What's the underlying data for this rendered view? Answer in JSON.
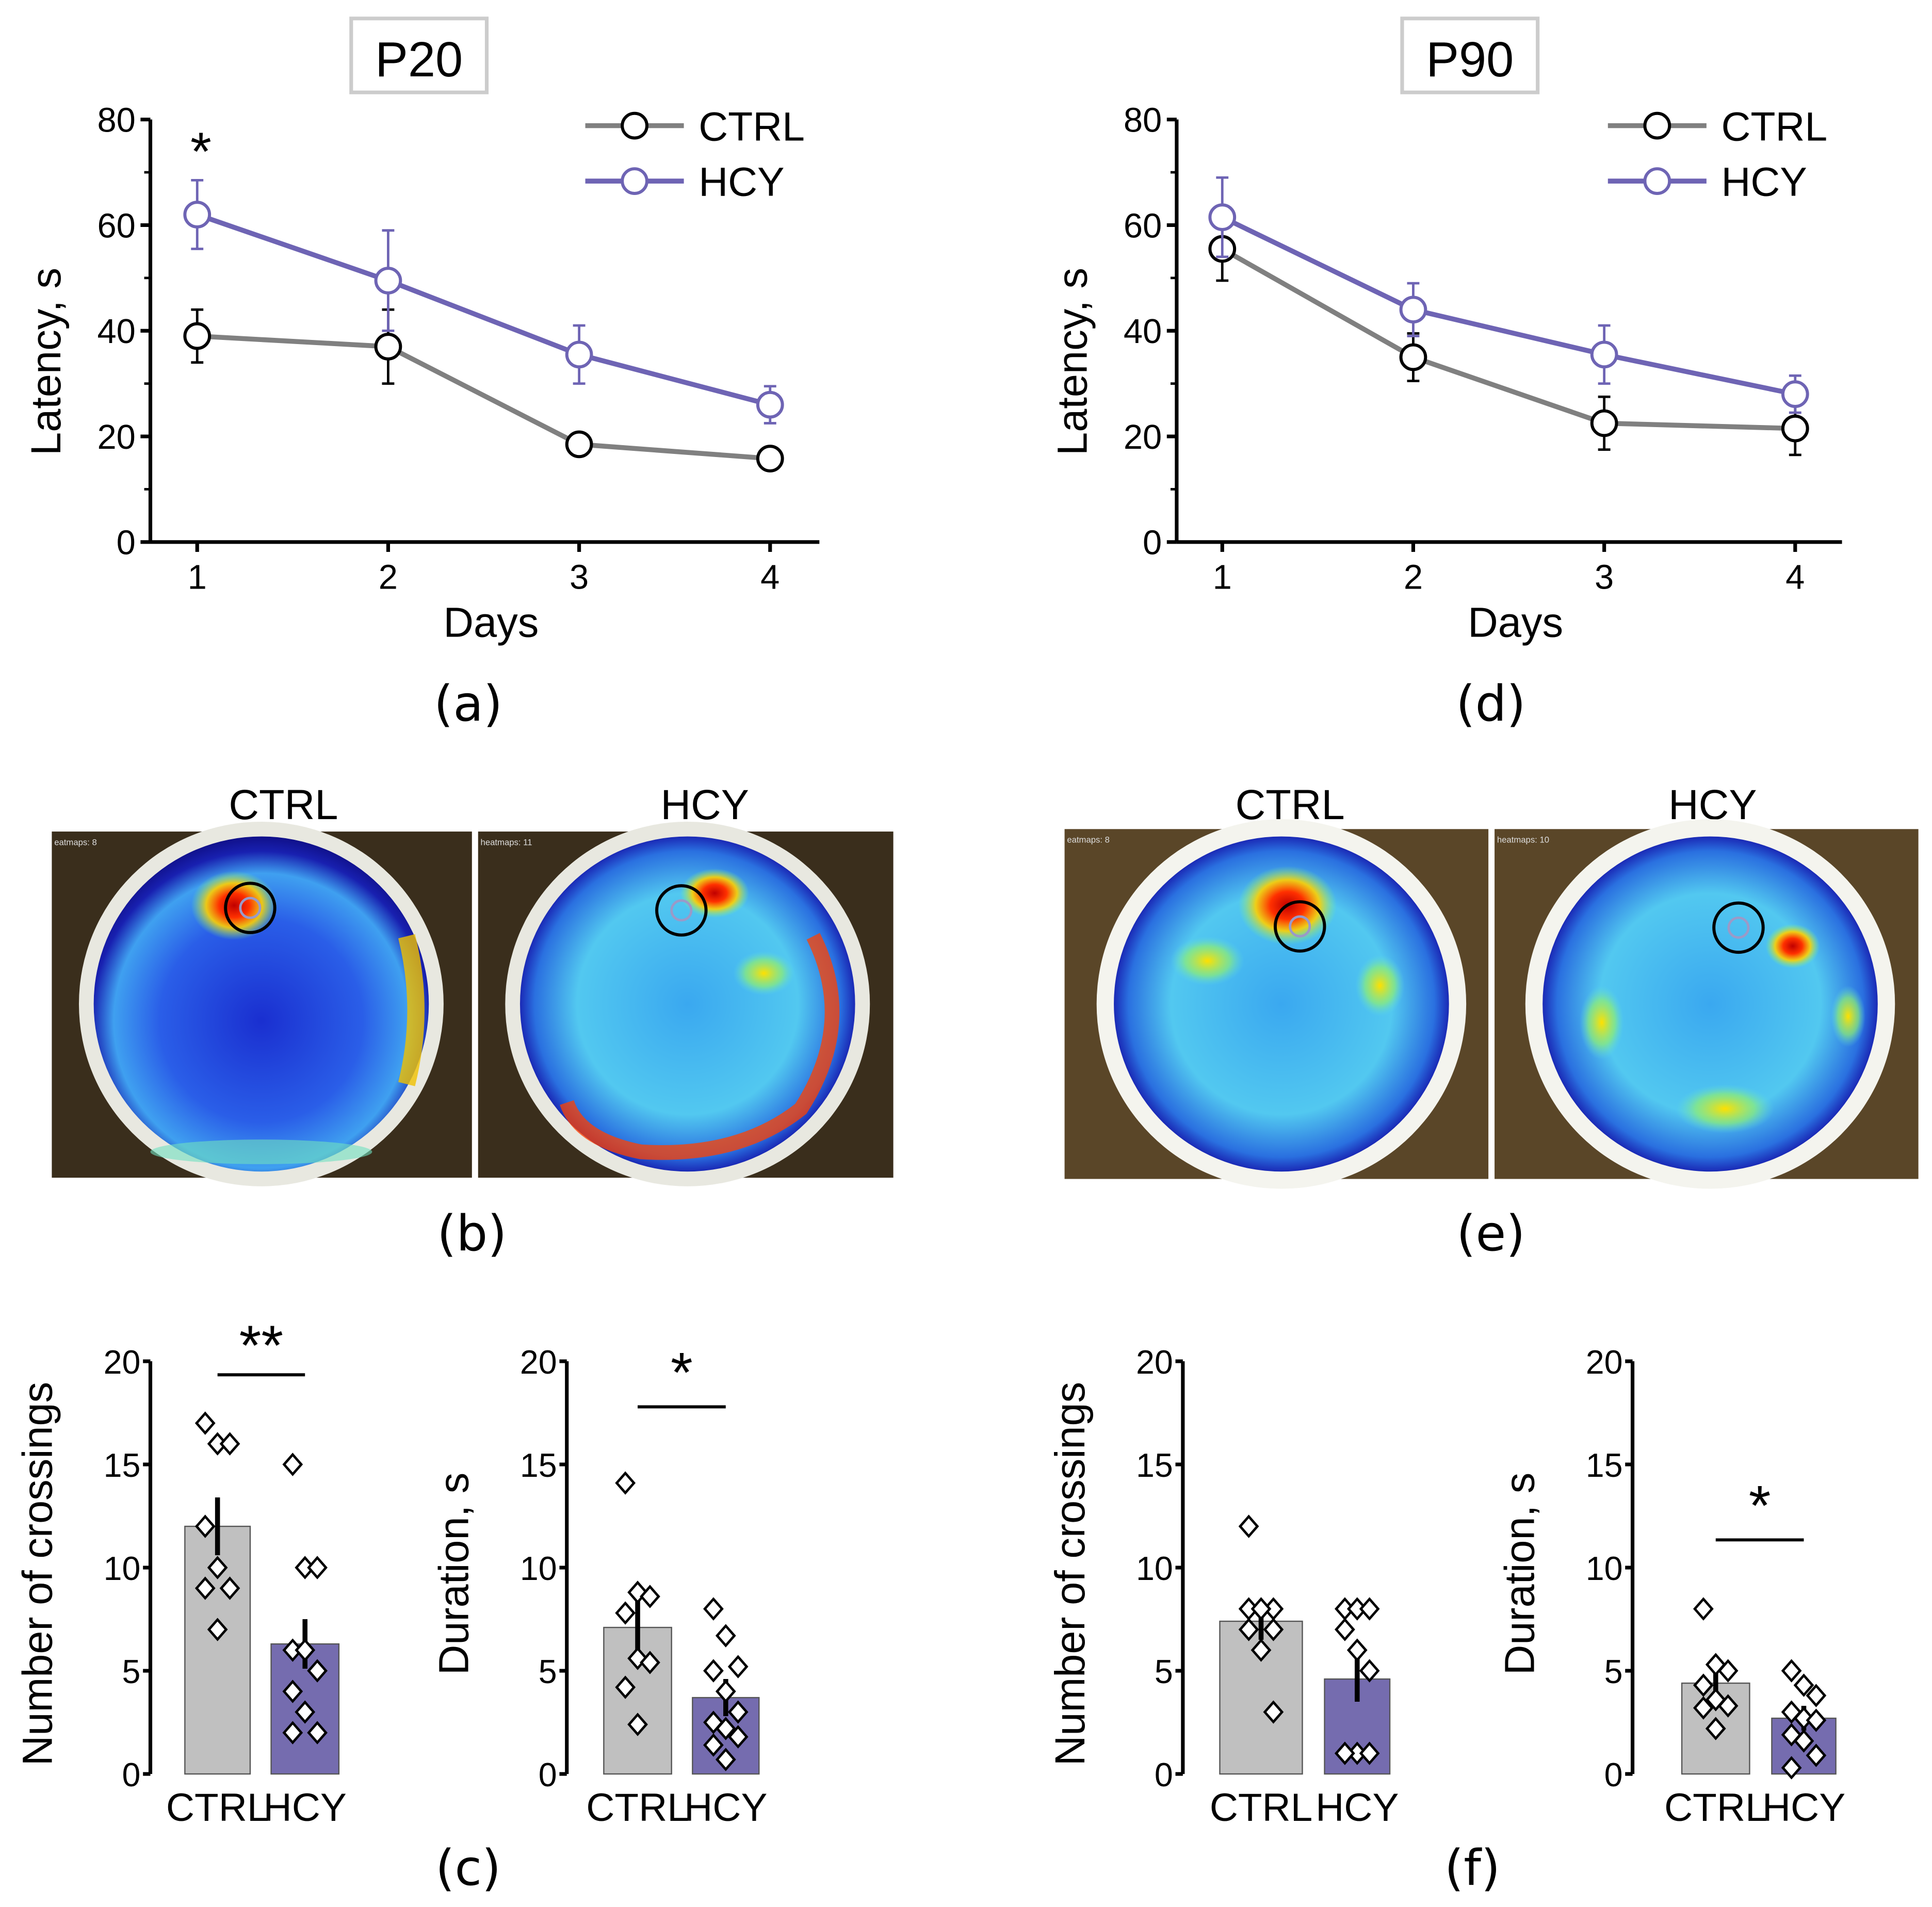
{
  "colors": {
    "ctrl": "#808080",
    "hcy": "#6e64b4",
    "ctrl_bar": "#c0c0c0",
    "hcy_bar": "#756caf"
  },
  "panel_labels": {
    "a": "(a)",
    "b": "(b)",
    "c": "(c)",
    "d": "(d)",
    "e": "(e)",
    "f": "(f)"
  },
  "heatmaps": {
    "p20": {
      "ctrl_title": "CTRL",
      "hcy_title": "HCY",
      "ctrl_overlay": "eatmaps: 8",
      "hcy_overlay": "heatmaps: 11"
    },
    "p90": {
      "ctrl_title": "CTRL",
      "hcy_title": "HCY",
      "ctrl_overlay": "eatmaps: 8",
      "hcy_overlay": "heatmaps: 10"
    }
  },
  "chart_data": [
    {
      "id": "a",
      "type": "line",
      "title": "P20",
      "xlabel": "Days",
      "ylabel": "Latency, s",
      "x": [
        1,
        2,
        3,
        4
      ],
      "ylim": [
        0,
        80
      ],
      "yticks": [
        0,
        20,
        40,
        60,
        80
      ],
      "legend": "top-right",
      "series": [
        {
          "name": "CTRL",
          "values": [
            39,
            37,
            18.5,
            15.8
          ],
          "errors": [
            5,
            7,
            1,
            1
          ]
        },
        {
          "name": "HCY",
          "values": [
            62,
            49.5,
            35.5,
            26
          ],
          "errors": [
            6.5,
            9.5,
            5.5,
            3.5
          ]
        }
      ],
      "annotations": [
        {
          "x": 1,
          "text": "*"
        }
      ]
    },
    {
      "id": "d",
      "type": "line",
      "title": "P90",
      "xlabel": "Days",
      "ylabel": "Latency, s",
      "x": [
        1,
        2,
        3,
        4
      ],
      "ylim": [
        0,
        80
      ],
      "yticks": [
        0,
        20,
        40,
        60,
        80
      ],
      "legend": "top-right",
      "series": [
        {
          "name": "CTRL",
          "values": [
            55.5,
            35,
            22.5,
            21.5
          ],
          "errors": [
            6,
            4.5,
            5,
            5
          ]
        },
        {
          "name": "HCY",
          "values": [
            61.5,
            44,
            35.5,
            28
          ],
          "errors": [
            7.5,
            5,
            5.5,
            3.5
          ]
        }
      ],
      "annotations": []
    },
    {
      "id": "c1",
      "type": "bar",
      "ylabel": "Number of crossings",
      "categories": [
        "CTRL",
        "HCY"
      ],
      "values": [
        12,
        6.3
      ],
      "errors": [
        1.4,
        1.2
      ],
      "ylim": [
        0,
        20
      ],
      "yticks": [
        0,
        5,
        10,
        15,
        20
      ],
      "points": [
        [
          17,
          16,
          16,
          12,
          10,
          9,
          9,
          7
        ],
        [
          15,
          10,
          10,
          6,
          6,
          5,
          4,
          3,
          2,
          2
        ]
      ],
      "significance": "**"
    },
    {
      "id": "c2",
      "type": "bar",
      "ylabel": "Duration, s",
      "categories": [
        "CTRL",
        "HCY"
      ],
      "values": [
        7.1,
        3.7
      ],
      "errors": [
        1.5,
        0.9
      ],
      "ylim": [
        0,
        20
      ],
      "yticks": [
        0,
        5,
        10,
        15,
        20
      ],
      "points": [
        [
          14.1,
          8.8,
          8.6,
          7.8,
          5.6,
          5.4,
          4.2,
          2.4
        ],
        [
          8,
          6.7,
          5.2,
          5,
          4,
          3,
          2.5,
          2.2,
          1.8,
          1.4,
          0.7
        ]
      ],
      "significance": "*"
    },
    {
      "id": "f1",
      "type": "bar",
      "ylabel": "Number of crossings",
      "categories": [
        "CTRL",
        "HCY"
      ],
      "values": [
        7.4,
        4.6
      ],
      "errors": [
        0.9,
        1.1
      ],
      "ylim": [
        0,
        20
      ],
      "yticks": [
        0,
        5,
        10,
        15,
        20
      ],
      "points": [
        [
          12,
          8,
          8,
          8,
          8,
          7,
          7,
          6,
          3
        ],
        [
          8,
          8,
          8,
          7,
          6,
          5,
          1,
          1,
          1,
          1
        ]
      ],
      "significance": ""
    },
    {
      "id": "f2",
      "type": "bar",
      "ylabel": "Duration, s",
      "categories": [
        "CTRL",
        "HCY"
      ],
      "values": [
        4.4,
        2.7
      ],
      "errors": [
        0.6,
        0.6
      ],
      "ylim": [
        0,
        20
      ],
      "yticks": [
        0,
        5,
        10,
        15,
        20
      ],
      "points": [
        [
          8,
          5.3,
          5,
          4.3,
          3.6,
          3.3,
          3.2,
          2.2
        ],
        [
          5,
          4.3,
          3.8,
          3,
          2.7,
          2.6,
          1.9,
          1.6,
          0.9,
          0.3
        ]
      ],
      "significance": "*"
    }
  ]
}
